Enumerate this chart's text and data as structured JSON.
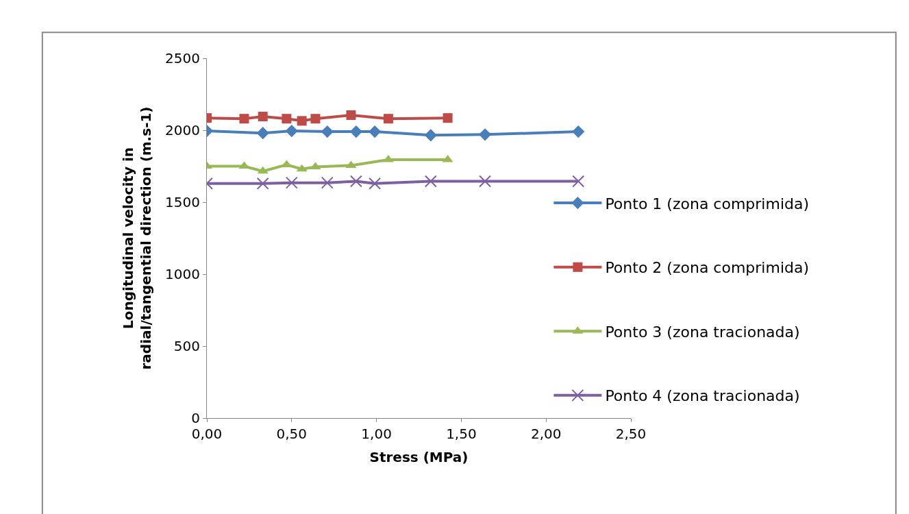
{
  "chart_data": {
    "type": "line",
    "xlabel": "Stress (MPa)",
    "ylabel": "Longitudinal velocity in radial/tangential direction (m.s-1)",
    "xlim": [
      0,
      2.5
    ],
    "xticks": [
      {
        "value": 0,
        "label": "0,00"
      },
      {
        "value": 0.5,
        "label": "0,50"
      },
      {
        "value": 1,
        "label": "1,00"
      },
      {
        "value": 1.5,
        "label": "1,50"
      },
      {
        "value": 2,
        "label": "2,00"
      },
      {
        "value": 2.5,
        "label": "2,50"
      }
    ],
    "ylim": [
      0,
      2500
    ],
    "yticks": [
      0,
      500,
      1000,
      1500,
      2000,
      2500
    ],
    "legend": "right",
    "series": [
      {
        "name": "Ponto 1 (zona comprimida)",
        "color": "#4a7ebb",
        "marker": "diamond",
        "x": [
          0,
          0.33,
          0.5,
          0.71,
          0.88,
          0.99,
          1.32,
          1.64,
          2.19
        ],
        "values": [
          1995,
          1980,
          1995,
          1990,
          1990,
          1990,
          1965,
          1970,
          1990
        ]
      },
      {
        "name": "Ponto 2 (zona comprimida)",
        "color": "#be4b48",
        "marker": "square",
        "x": [
          0,
          0.22,
          0.33,
          0.47,
          0.56,
          0.64,
          0.85,
          1.07,
          1.42
        ],
        "values": [
          2085,
          2080,
          2095,
          2080,
          2065,
          2080,
          2105,
          2080,
          2085
        ]
      },
      {
        "name": "Ponto 3 (zona tracionada)",
        "color": "#98b954",
        "marker": "triangle",
        "x": [
          0,
          0.22,
          0.33,
          0.47,
          0.56,
          0.64,
          0.85,
          1.07,
          1.42
        ],
        "values": [
          1750,
          1750,
          1715,
          1760,
          1730,
          1745,
          1755,
          1795,
          1795
        ]
      },
      {
        "name": "Ponto 4 (zona tracionada)",
        "color": "#7d60a0",
        "marker": "cross",
        "x": [
          0,
          0.33,
          0.5,
          0.71,
          0.88,
          0.99,
          1.32,
          1.64,
          2.19
        ],
        "values": [
          1630,
          1630,
          1635,
          1635,
          1645,
          1630,
          1645,
          1645,
          1645
        ]
      }
    ]
  }
}
